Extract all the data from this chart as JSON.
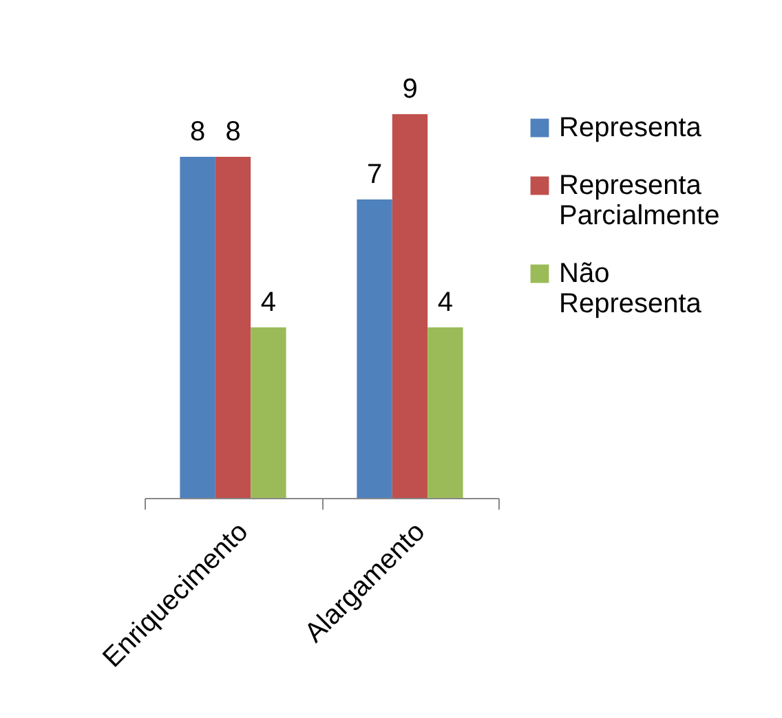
{
  "chart_data": {
    "type": "bar",
    "categories": [
      "Enriquecimento",
      "Alargamento"
    ],
    "series": [
      {
        "name": "Representa",
        "color": "#4f81bd",
        "values": [
          8,
          7
        ]
      },
      {
        "name": "Representa Parcialmente",
        "color": "#c0504d",
        "values": [
          8,
          9
        ]
      },
      {
        "name": "Não Representa",
        "color": "#9bbb59",
        "values": [
          4,
          4
        ]
      }
    ],
    "data_labels": true,
    "legend": "right",
    "grid": false
  }
}
